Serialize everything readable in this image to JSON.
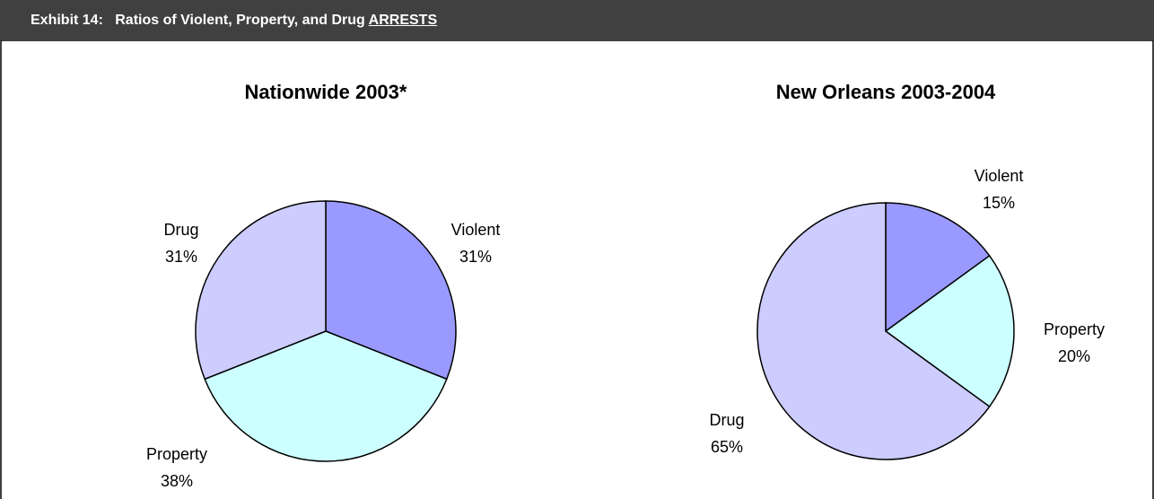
{
  "header": {
    "label": "Exhibit 14:",
    "title": "Ratios of Violent, Property, and Drug",
    "emphasis": "ARRESTS"
  },
  "chart_data": [
    {
      "type": "pie",
      "title": "Nationwide 2003*",
      "categories": [
        "Violent",
        "Property",
        "Drug"
      ],
      "values": [
        31,
        38,
        31
      ],
      "value_labels": [
        "31%",
        "38%",
        "31%"
      ],
      "colors": [
        "#9999ff",
        "#ccffff",
        "#ccccff"
      ]
    },
    {
      "type": "pie",
      "title": "New Orleans 2003-2004",
      "categories": [
        "Violent",
        "Property",
        "Drug"
      ],
      "values": [
        15,
        20,
        65
      ],
      "value_labels": [
        "15%",
        "20%",
        "65%"
      ],
      "colors": [
        "#9999ff",
        "#ccffff",
        "#ccccff"
      ]
    }
  ]
}
